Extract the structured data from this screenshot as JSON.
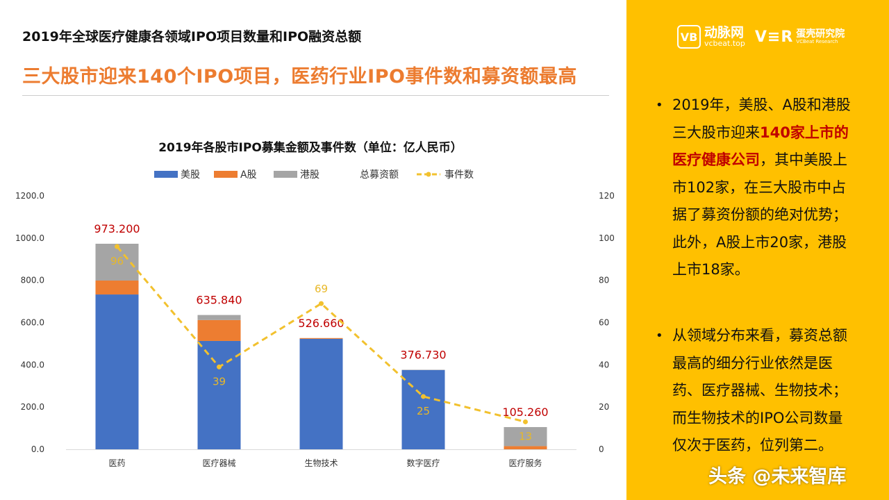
{
  "header": {
    "title": "2019年全球医疗健康各领域IPO项目数量和IPO融资总额",
    "subtitle": "三大股市迎来140个IPO项目，医药行业IPO事件数和募资额最高"
  },
  "logo": {
    "brand1_mark": "VB",
    "brand1_name": "动脉网",
    "brand1_url": "vcbeat.top",
    "brand2_mark": "V≡R",
    "brand2_name": "蛋壳研究院",
    "brand2_en": "VCBeat Research"
  },
  "panel": {
    "p1_pre": "2019年，美股、A股和港股三大股市迎来",
    "p1_highlight": "140家上市的医疗健康公司",
    "p1_post": "，其中美股上市102家，在三大股市中占据了募资份额的绝对优势；此外，A股上市20家，港股上市18家。",
    "p2": "从领域分布来看，募资总额最高的细分行业依然是医药、医疗器械、生物技术；而生物技术的IPO公司数量仅次于医药，位列第二。",
    "bullet": "•"
  },
  "watermark": "头条 @未来智库",
  "chart_data": {
    "type": "bar",
    "stacked": true,
    "title": "2019年各股市IPO募集金额及事件数（单位：亿人民币）",
    "categories": [
      "医药",
      "医疗器械",
      "生物技术",
      "数字医疗",
      "医疗服务"
    ],
    "series": [
      {
        "name": "美股",
        "values": [
          733,
          513,
          523,
          375,
          0
        ],
        "color": "#4472C4"
      },
      {
        "name": "A股",
        "values": [
          66,
          99,
          3.7,
          0,
          15
        ],
        "color": "#ED7D31"
      },
      {
        "name": "港股",
        "values": [
          174.2,
          23.84,
          0,
          1.73,
          90.26
        ],
        "color": "#A5A5A5"
      }
    ],
    "totals": {
      "name": "总募资额",
      "values": [
        973.2,
        635.84,
        526.66,
        376.73,
        105.26
      ],
      "labels": [
        "973.200",
        "635.840",
        "526.660",
        "376.730",
        "105.260"
      ],
      "color": "#C00000"
    },
    "line": {
      "name": "事件数",
      "values": [
        96,
        39,
        69,
        25,
        13
      ],
      "color": "#F2C12E",
      "axis": "right"
    },
    "ylim": [
      0,
      1200
    ],
    "yticks": [
      "0.0",
      "200.0",
      "400.0",
      "600.0",
      "800.0",
      "1000.0",
      "1200.0"
    ],
    "y2lim": [
      0,
      120
    ],
    "y2ticks": [
      "0",
      "20",
      "40",
      "60",
      "80",
      "100",
      "120"
    ],
    "legend": "top",
    "grid": false
  }
}
